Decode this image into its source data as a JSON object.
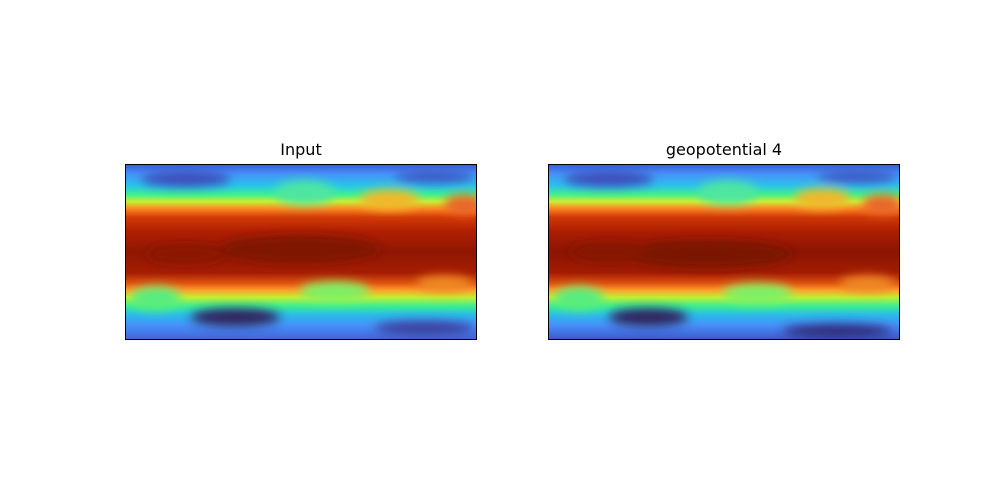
{
  "chart_data": [
    {
      "type": "heatmap",
      "title": "Input",
      "colormap": "turbo",
      "axes_ticks": false,
      "grid": false,
      "field": "zonal band field, maximum near equator, minima at poles"
    },
    {
      "type": "heatmap",
      "title": "geopotential 4",
      "colormap": "turbo",
      "axes_ticks": false,
      "grid": false,
      "field": "zonal band field, maximum near equator, minima at poles"
    }
  ]
}
